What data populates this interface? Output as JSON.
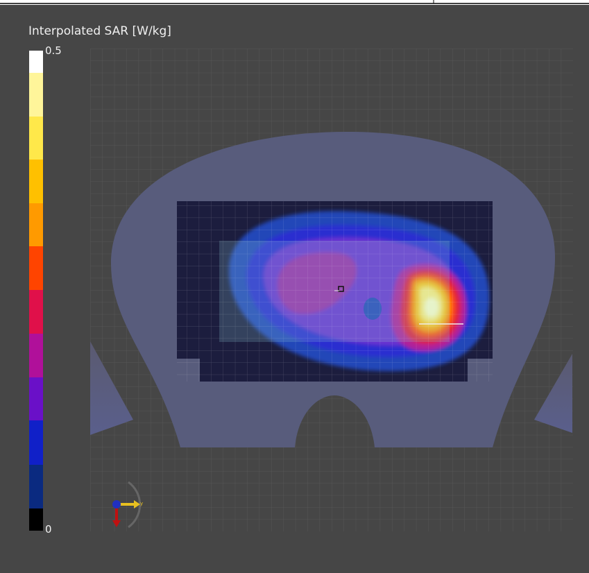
{
  "colorbar": {
    "title": "Interpolated SAR [W/kg]",
    "max": 0.5,
    "min": 0
  },
  "axes_gizmo": {
    "label": "y"
  }
}
